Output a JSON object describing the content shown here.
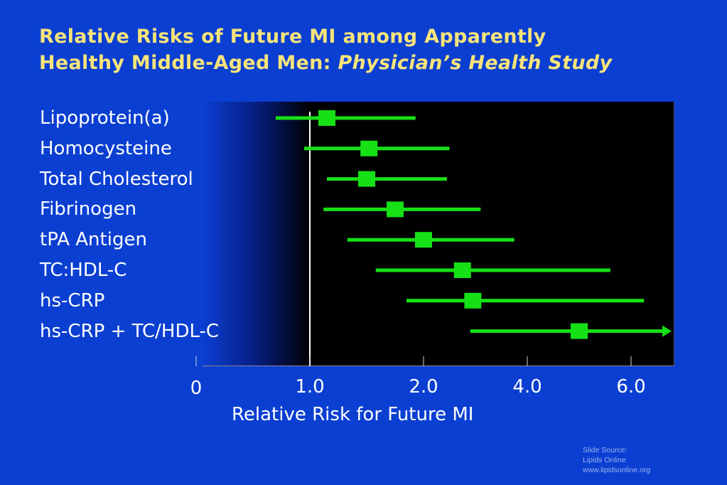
{
  "title": {
    "line1": "Relative Risks of Future MI among Apparently",
    "line2": "Healthy Middle-Aged Men: ",
    "line2_italic": "Physician’s Health Study"
  },
  "chart_data": {
    "type": "forest",
    "xlabel": "Relative Risk for Future MI",
    "reference_line": 1.0,
    "ticks": [
      {
        "value": 0,
        "label": "0"
      },
      {
        "value": 1.0,
        "label": "1.0"
      },
      {
        "value": 2.0,
        "label": "2.0"
      },
      {
        "value": 4.0,
        "label": "4.0"
      },
      {
        "value": 6.0,
        "label": "6.0"
      }
    ],
    "rows": [
      {
        "label": "Lipoprotein(a)",
        "point": 1.15,
        "low": 0.7,
        "high": 1.93,
        "arrow": false
      },
      {
        "label": "Homocysteine",
        "point": 1.52,
        "low": 0.95,
        "high": 2.5,
        "arrow": false
      },
      {
        "label": "Total Cholesterol",
        "point": 1.5,
        "low": 1.15,
        "high": 2.45,
        "arrow": false
      },
      {
        "label": "Fibrinogen",
        "point": 1.75,
        "low": 1.12,
        "high": 3.1,
        "arrow": false
      },
      {
        "label": "tPA Antigen",
        "point": 2.0,
        "low": 1.33,
        "high": 3.75,
        "arrow": false
      },
      {
        "label": "TC:HDL-C",
        "point": 2.75,
        "low": 1.58,
        "high": 5.6,
        "arrow": false
      },
      {
        "label": "hs-CRP",
        "point": 2.95,
        "low": 1.85,
        "high": 6.25,
        "arrow": false
      },
      {
        "label": "hs-CRP + TC/HDL-C",
        "point": 5.0,
        "low": 2.9,
        "high": 6.7,
        "arrow": true
      }
    ]
  },
  "colors": {
    "background": "#0b3fd2",
    "plot": "#000000",
    "marker": "#16e016",
    "title": "#f7e47a",
    "text": "#ffffff"
  },
  "source": {
    "line1": "Slide Source:",
    "line2": "Lipids Online",
    "line3": "www.lipidsonline.org"
  }
}
